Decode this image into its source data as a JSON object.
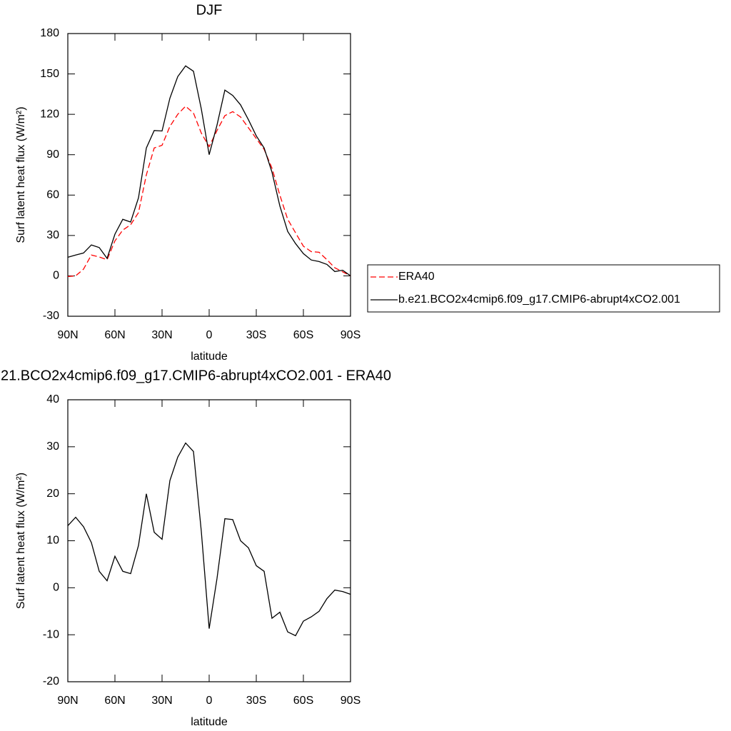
{
  "chart_data": [
    {
      "type": "line",
      "title": "DJF",
      "xlabel": "latitude",
      "ylabel": "Surf latent heat flux (W/m²)",
      "x": [
        90,
        85,
        80,
        75,
        70,
        65,
        60,
        55,
        50,
        45,
        40,
        35,
        30,
        25,
        20,
        15,
        10,
        5,
        0,
        -5,
        -10,
        -15,
        -20,
        -25,
        -30,
        -35,
        -40,
        -45,
        -50,
        -55,
        -60,
        -65,
        -70,
        -75,
        -80,
        -85,
        -90
      ],
      "xlim": [
        90,
        -90
      ],
      "xticks": [
        {
          "value": 90,
          "label": "90N"
        },
        {
          "value": 60,
          "label": "60N"
        },
        {
          "value": 30,
          "label": "30N"
        },
        0,
        {
          "value": -30,
          "label": "30S"
        },
        {
          "value": -60,
          "label": "60S"
        },
        {
          "value": -90,
          "label": "90S"
        }
      ],
      "ylim": [
        -30,
        180
      ],
      "yticks": [
        -30,
        0,
        30,
        60,
        90,
        120,
        150,
        180
      ],
      "legend_position": "right",
      "series": [
        {
          "name": "ERA40",
          "color": "#ff0000",
          "dashed": true,
          "values": [
            -0.5,
            0,
            5,
            15.5,
            14,
            12,
            26,
            34,
            38,
            47,
            75,
            95,
            97,
            111,
            120,
            126,
            121,
            106,
            96,
            108,
            119,
            122,
            118,
            110,
            102,
            94,
            80,
            60,
            42,
            32,
            22,
            18,
            17.5,
            12,
            6,
            3,
            0
          ]
        },
        {
          "name": "b.e21.BCO2x4cmip6.f09_g17.CMIP6-abrupt4xCO2.001",
          "color": "#000000",
          "dashed": false,
          "values": [
            13.8,
            15.5,
            17,
            23,
            21,
            13,
            31,
            42,
            40,
            58,
            95,
            108,
            107.6,
            132,
            148,
            156,
            152,
            124,
            90,
            112,
            138,
            134,
            127,
            116,
            104,
            95,
            77,
            52,
            33,
            24,
            16.5,
            11.8,
            10.6,
            8.5,
            3.2,
            4.2,
            0
          ]
        }
      ]
    },
    {
      "type": "line",
      "title": "21.BCO2x4cmip6.f09_g17.CMIP6-abrupt4xCO2.001 - ERA40",
      "xlabel": "latitude",
      "ylabel": "Surf latent heat flux (W/m²)",
      "x": [
        90,
        85,
        80,
        75,
        70,
        65,
        60,
        55,
        50,
        45,
        40,
        35,
        30,
        25,
        20,
        15,
        10,
        5,
        0,
        -5,
        -10,
        -15,
        -20,
        -25,
        -30,
        -35,
        -40,
        -45,
        -50,
        -55,
        -60,
        -65,
        -70,
        -75,
        -80,
        -85,
        -90
      ],
      "xlim": [
        90,
        -90
      ],
      "xticks": [
        {
          "value": 90,
          "label": "90N"
        },
        {
          "value": 60,
          "label": "60N"
        },
        {
          "value": 30,
          "label": "30N"
        },
        0,
        {
          "value": -30,
          "label": "30S"
        },
        {
          "value": -60,
          "label": "60S"
        },
        {
          "value": -90,
          "label": "90S"
        }
      ],
      "ylim": [
        -20,
        40
      ],
      "yticks": [
        -20,
        -10,
        0,
        10,
        20,
        30,
        40
      ],
      "series": [
        {
          "color": "#000000",
          "dashed": false,
          "values": [
            13.2,
            15,
            13,
            9.6,
            3.5,
            1.5,
            6.7,
            3.5,
            3,
            9,
            20,
            11.8,
            10.3,
            22.8,
            27.8,
            30.8,
            29,
            12,
            -8.7,
            2,
            14.7,
            14.5,
            10,
            8.5,
            4.7,
            3.5,
            -6.5,
            -5.2,
            -9.4,
            -10.2,
            -7.1,
            -6.2,
            -5,
            -2.3,
            -0.5,
            -0.8,
            -1.4
          ]
        }
      ]
    }
  ]
}
